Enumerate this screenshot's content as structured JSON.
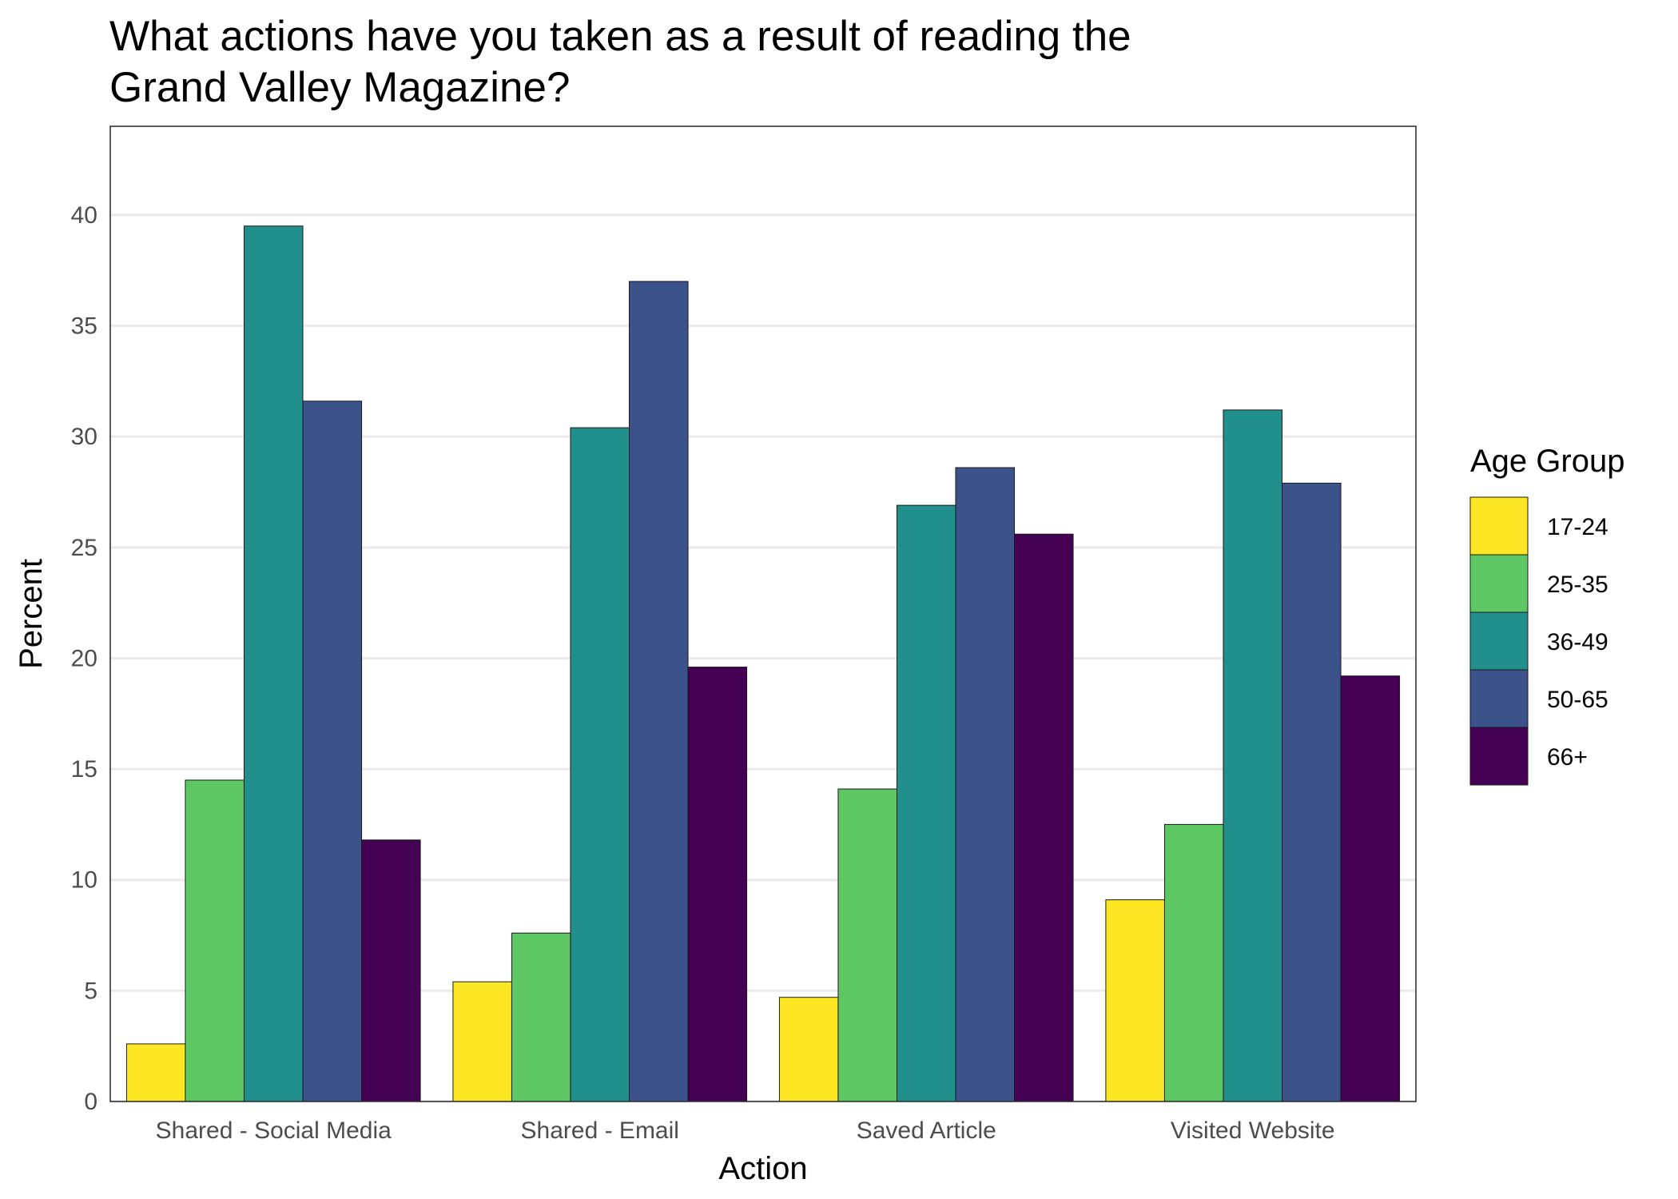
{
  "chart_data": {
    "type": "bar",
    "title_lines": [
      "What actions have you taken as a result of reading the",
      "Grand Valley Magazine?"
    ],
    "xlabel": "Action",
    "ylabel": "Percent",
    "ylim": [
      0,
      44
    ],
    "yticks": [
      0,
      5,
      10,
      15,
      20,
      25,
      30,
      35,
      40
    ],
    "grid": "horizontal",
    "categories": [
      "Shared - Social Media",
      "Shared - Email",
      "Saved Article",
      "Visited Website"
    ],
    "legend": {
      "title": "Age Group",
      "position": "right"
    },
    "series": [
      {
        "name": "17-24",
        "color": "#FDE725",
        "values": [
          2.6,
          5.4,
          4.7,
          9.1
        ]
      },
      {
        "name": "25-35",
        "color": "#5DC863",
        "values": [
          14.5,
          7.6,
          14.1,
          12.5
        ]
      },
      {
        "name": "36-49",
        "color": "#21908C",
        "values": [
          39.5,
          30.4,
          26.9,
          31.2
        ]
      },
      {
        "name": "50-65",
        "color": "#3B528B",
        "values": [
          31.6,
          37.0,
          28.6,
          27.9
        ]
      },
      {
        "name": "66+",
        "color": "#440154",
        "values": [
          11.8,
          19.6,
          25.6,
          19.2
        ]
      }
    ]
  }
}
